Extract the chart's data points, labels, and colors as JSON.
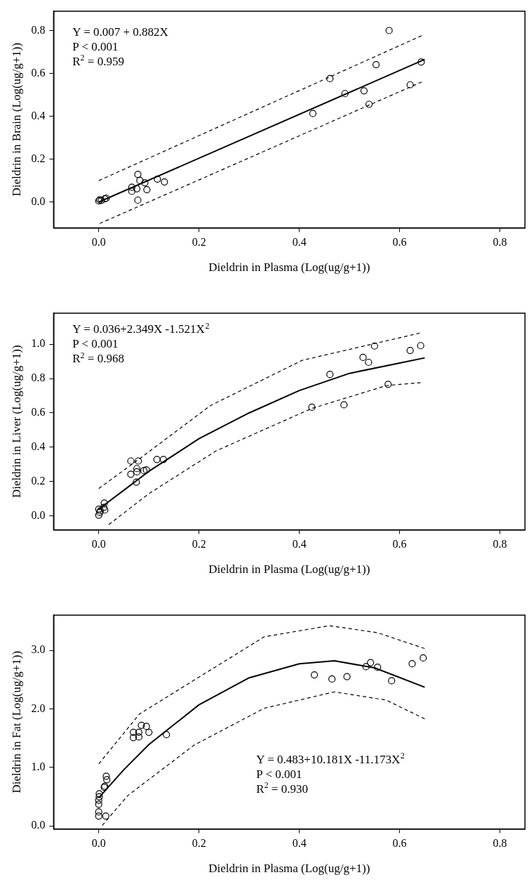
{
  "chart_data": [
    {
      "type": "scatter",
      "xlabel": "Dieldrin in Plasma (Log(ug/g+1))",
      "ylabel": "Dieldrin in Brain (Log(ug/g+1))",
      "xlim": [
        -0.09,
        0.85
      ],
      "ylim": [
        -0.12,
        0.89
      ],
      "xticks": [
        {
          "value": 0,
          "label": "0.0"
        },
        {
          "value": 0.2,
          "label": "0.2"
        },
        {
          "value": 0.4,
          "label": "0.4"
        },
        {
          "value": 0.6,
          "label": "0.6"
        },
        {
          "value": 0.8,
          "label": "0.8"
        }
      ],
      "yticks": [
        {
          "value": 0,
          "label": "0.0"
        },
        {
          "value": 0.2,
          "label": "0.2"
        },
        {
          "value": 0.4,
          "label": "0.4"
        },
        {
          "value": 0.6,
          "label": "0.6"
        },
        {
          "value": 0.8,
          "label": "0.8"
        }
      ],
      "grid": false,
      "legend": false,
      "annotations": [
        "Y = 0.007 + 0.882X",
        "P < 0.001",
        "R$^{2}$ = 0.959"
      ],
      "series": [
        {
          "type": "scatter",
          "marker": "circle",
          "color": "#000000",
          "x": [
            0.579,
            0.553,
            0.643,
            0.461,
            0.491,
            0.529,
            0.621,
            0.539,
            0.427,
            0.078,
            0.082,
            0.092,
            0.117,
            0.131,
            0.066,
            0.066,
            0.076,
            0.096,
            0.078,
            0,
            0.002,
            0.005,
            0.012,
            0.015
          ],
          "values": [
            0.8,
            0.641,
            0.653,
            0.576,
            0.506,
            0.519,
            0.547,
            0.456,
            0.413,
            0.129,
            0.101,
            0.09,
            0.107,
            0.094,
            0.069,
            0.05,
            0.062,
            0.058,
            0.009,
            0.005,
            0.01,
            0.008,
            0.015,
            0.018
          ]
        },
        {
          "type": "line",
          "marker": "none",
          "line_style": "solid",
          "color": "#000000",
          "x": [
            0,
            0.65
          ],
          "values": [
            0.0,
            0.665
          ]
        },
        {
          "type": "line",
          "marker": "none",
          "line_style": "dashed",
          "color": "#000000",
          "x": [
            0,
            0.644
          ],
          "values": [
            0.1,
            0.776
          ]
        },
        {
          "type": "line",
          "marker": "none",
          "line_style": "dashed",
          "color": "#000000",
          "x": [
            0.002,
            0.644
          ],
          "values": [
            -0.1,
            0.56
          ]
        }
      ]
    },
    {
      "type": "scatter",
      "xlabel": "Dieldrin in Plasma (Log(ug/g+1))",
      "ylabel": "Dieldrin in Liver (Log(ug/g+1))",
      "xlim": [
        -0.09,
        0.85
      ],
      "ylim": [
        -0.08,
        1.18
      ],
      "xticks": [
        {
          "value": 0,
          "label": "0.0"
        },
        {
          "value": 0.2,
          "label": "0.2"
        },
        {
          "value": 0.4,
          "label": "0.4"
        },
        {
          "value": 0.6,
          "label": "0.6"
        },
        {
          "value": 0.8,
          "label": "0.8"
        }
      ],
      "yticks": [
        {
          "value": 0,
          "label": "0.0"
        },
        {
          "value": 0.2,
          "label": "0.2"
        },
        {
          "value": 0.4,
          "label": "0.4"
        },
        {
          "value": 0.6,
          "label": "0.6"
        },
        {
          "value": 0.8,
          "label": "0.8"
        },
        {
          "value": 1,
          "label": "1.0"
        }
      ],
      "grid": false,
      "legend": false,
      "annotations": [
        "Y = 0.036+2.349X -1.521X$^{2}$",
        "P < 0.001",
        "R$^{2}$ = 0.968"
      ],
      "series": [
        {
          "type": "scatter",
          "marker": "circle",
          "color": "#000000",
          "x": [
            0.642,
            0.621,
            0.55,
            0.527,
            0.538,
            0.461,
            0.577,
            0.489,
            0.425,
            0.064,
            0.079,
            0.116,
            0.129,
            0.076,
            0.064,
            0.076,
            0.09,
            0.095,
            0.075,
            0.011,
            0.01,
            0.012,
            0,
            0.002,
            0,
            0.003
          ],
          "values": [
            0.991,
            0.963,
            0.989,
            0.923,
            0.894,
            0.824,
            0.766,
            0.647,
            0.633,
            0.32,
            0.32,
            0.329,
            0.329,
            0.276,
            0.243,
            0.257,
            0.264,
            0.268,
            0.197,
            0.075,
            0.05,
            0.035,
            0.04,
            0.02,
            0.005,
            0.03
          ]
        },
        {
          "type": "line",
          "marker": "none",
          "line_style": "solid",
          "color": "#000000",
          "x": [
            0,
            0.05,
            0.1,
            0.2,
            0.3,
            0.4,
            0.5,
            0.6,
            0.65
          ],
          "values": [
            0.04,
            0.15,
            0.26,
            0.45,
            0.6,
            0.73,
            0.83,
            0.89,
            0.92
          ]
        },
        {
          "type": "line",
          "marker": "none",
          "line_style": "dashed",
          "color": "#000000",
          "x": [
            0,
            0.08,
            0.223,
            0.406,
            0.64
          ],
          "values": [
            0.16,
            0.33,
            0.643,
            0.906,
            1.064
          ]
        },
        {
          "type": "line",
          "marker": "none",
          "line_style": "dashed",
          "color": "#000000",
          "x": [
            0.02,
            0.1,
            0.234,
            0.425,
            0.574,
            0.642
          ],
          "values": [
            -0.05,
            0.13,
            0.379,
            0.626,
            0.759,
            0.776
          ]
        }
      ]
    },
    {
      "type": "scatter",
      "xlabel": "Dieldrin in Plasma (Log(ug/g+1))",
      "ylabel": "Dieldrin in Fat (Log(ug/g+1))",
      "xlim": [
        -0.09,
        0.85
      ],
      "ylim": [
        -0.05,
        3.6
      ],
      "xticks": [
        {
          "value": 0,
          "label": "0.0"
        },
        {
          "value": 0.2,
          "label": "0.2"
        },
        {
          "value": 0.4,
          "label": "0.4"
        },
        {
          "value": 0.6,
          "label": "0.6"
        },
        {
          "value": 0.8,
          "label": "0.8"
        }
      ],
      "yticks": [
        {
          "value": 0,
          "label": "0.0"
        },
        {
          "value": 1,
          "label": "1.0"
        },
        {
          "value": 2,
          "label": "2.0"
        },
        {
          "value": 3,
          "label": "3.0"
        }
      ],
      "grid": false,
      "legend": false,
      "annotations": [
        "Y = 0.483+10.181X -11.173X$^{2}$",
        "P < 0.001",
        "R$^{2}$ = 0.930"
      ],
      "series": [
        {
          "type": "scatter",
          "marker": "circle",
          "color": "#000000",
          "x": [
            0.647,
            0.625,
            0.542,
            0.533,
            0.556,
            0.584,
            0.43,
            0.465,
            0.495,
            0.085,
            0.095,
            0.1,
            0.069,
            0.08,
            0.069,
            0.08,
            0.135,
            0.015,
            0.016,
            0.012,
            0.011,
            0.001,
            0.001,
            0,
            0,
            0,
            0,
            0.014
          ],
          "values": [
            2.87,
            2.77,
            2.79,
            2.72,
            2.71,
            2.48,
            2.58,
            2.51,
            2.55,
            1.72,
            1.7,
            1.6,
            1.6,
            1.6,
            1.51,
            1.52,
            1.56,
            0.85,
            0.79,
            0.68,
            0.66,
            0.55,
            0.5,
            0.44,
            0.37,
            0.24,
            0.17,
            0.17
          ]
        },
        {
          "type": "line",
          "marker": "none",
          "line_style": "solid",
          "color": "#000000",
          "x": [
            0,
            0.05,
            0.1,
            0.2,
            0.3,
            0.4,
            0.47,
            0.55,
            0.65
          ],
          "values": [
            0.48,
            0.96,
            1.39,
            2.07,
            2.53,
            2.77,
            2.82,
            2.7,
            2.37
          ]
        },
        {
          "type": "line",
          "marker": "none",
          "line_style": "dashed",
          "color": "#000000",
          "x": [
            0,
            0.081,
            0.19,
            0.33,
            0.46,
            0.556,
            0.65
          ],
          "values": [
            1.06,
            1.91,
            2.49,
            3.23,
            3.42,
            3.3,
            3.03
          ]
        },
        {
          "type": "line",
          "marker": "none",
          "line_style": "dashed",
          "color": "#000000",
          "x": [
            0.007,
            0.058,
            0.19,
            0.33,
            0.47,
            0.573,
            0.65
          ],
          "values": [
            0.01,
            0.52,
            1.38,
            2.01,
            2.29,
            2.15,
            1.83
          ]
        }
      ]
    }
  ]
}
